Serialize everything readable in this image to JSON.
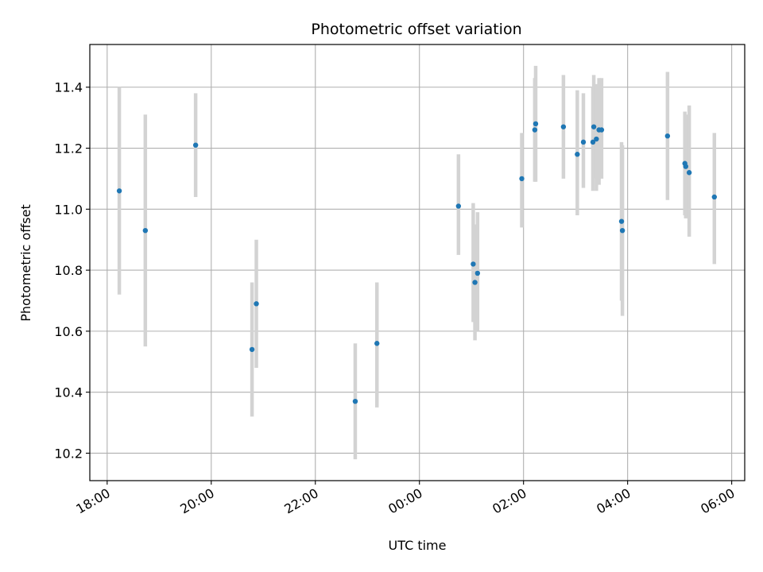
{
  "chart_data": {
    "type": "scatter",
    "title": "Photometric offset variation",
    "xlabel": "UTC time",
    "ylabel": "Photometric offset",
    "x_unit": "datetime",
    "xlim": [
      "17:40",
      "06:15"
    ],
    "ylim": [
      10.11,
      11.54
    ],
    "x_ticks": [
      "18:00",
      "20:00",
      "22:00",
      "00:00",
      "02:00",
      "04:00",
      "06:00"
    ],
    "y_ticks": [
      10.2,
      10.4,
      10.6,
      10.8,
      11.0,
      11.2,
      11.4
    ],
    "grid": true,
    "colors": {
      "points": "#1f77b4",
      "error_bars": "#d3d3d3",
      "grid": "#b0b0b0"
    },
    "points": [
      {
        "x": "18:14",
        "y": 11.06,
        "y_low": 10.72,
        "y_high": 11.4
      },
      {
        "x": "18:44",
        "y": 10.93,
        "y_low": 10.55,
        "y_high": 11.31
      },
      {
        "x": "19:42",
        "y": 11.21,
        "y_low": 11.04,
        "y_high": 11.38
      },
      {
        "x": "20:47",
        "y": 10.54,
        "y_low": 10.32,
        "y_high": 10.76
      },
      {
        "x": "20:52",
        "y": 10.69,
        "y_low": 10.48,
        "y_high": 10.9
      },
      {
        "x": "22:46",
        "y": 10.37,
        "y_low": 10.18,
        "y_high": 10.56
      },
      {
        "x": "23:11",
        "y": 10.56,
        "y_low": 10.35,
        "y_high": 10.76
      },
      {
        "x": "00:45",
        "y": 11.01,
        "y_low": 10.85,
        "y_high": 11.18
      },
      {
        "x": "01:02",
        "y": 10.82,
        "y_low": 10.63,
        "y_high": 11.02
      },
      {
        "x": "01:04",
        "y": 10.76,
        "y_low": 10.57,
        "y_high": 10.95
      },
      {
        "x": "01:07",
        "y": 10.79,
        "y_low": 10.6,
        "y_high": 10.99
      },
      {
        "x": "01:58",
        "y": 11.1,
        "y_low": 10.94,
        "y_high": 11.25
      },
      {
        "x": "02:13",
        "y": 11.26,
        "y_low": 11.09,
        "y_high": 11.43
      },
      {
        "x": "02:14",
        "y": 11.28,
        "y_low": 11.09,
        "y_high": 11.47
      },
      {
        "x": "02:46",
        "y": 11.27,
        "y_low": 11.1,
        "y_high": 11.44
      },
      {
        "x": "03:02",
        "y": 11.18,
        "y_low": 10.98,
        "y_high": 11.39
      },
      {
        "x": "03:09",
        "y": 11.22,
        "y_low": 11.07,
        "y_high": 11.38
      },
      {
        "x": "03:20",
        "y": 11.22,
        "y_low": 11.06,
        "y_high": 11.4
      },
      {
        "x": "03:21",
        "y": 11.27,
        "y_low": 11.1,
        "y_high": 11.44
      },
      {
        "x": "03:24",
        "y": 11.23,
        "y_low": 11.06,
        "y_high": 11.41
      },
      {
        "x": "03:27",
        "y": 11.26,
        "y_low": 11.08,
        "y_high": 11.43
      },
      {
        "x": "03:30",
        "y": 11.26,
        "y_low": 11.1,
        "y_high": 11.43
      },
      {
        "x": "03:53",
        "y": 10.96,
        "y_low": 10.7,
        "y_high": 11.22
      },
      {
        "x": "03:54",
        "y": 10.93,
        "y_low": 10.65,
        "y_high": 11.21
      },
      {
        "x": "04:46",
        "y": 11.24,
        "y_low": 11.03,
        "y_high": 11.45
      },
      {
        "x": "05:06",
        "y": 11.15,
        "y_low": 10.98,
        "y_high": 11.32
      },
      {
        "x": "05:07",
        "y": 11.14,
        "y_low": 10.97,
        "y_high": 11.31
      },
      {
        "x": "05:11",
        "y": 11.12,
        "y_low": 10.91,
        "y_high": 11.34
      },
      {
        "x": "05:40",
        "y": 11.04,
        "y_low": 10.82,
        "y_high": 11.25
      }
    ]
  }
}
